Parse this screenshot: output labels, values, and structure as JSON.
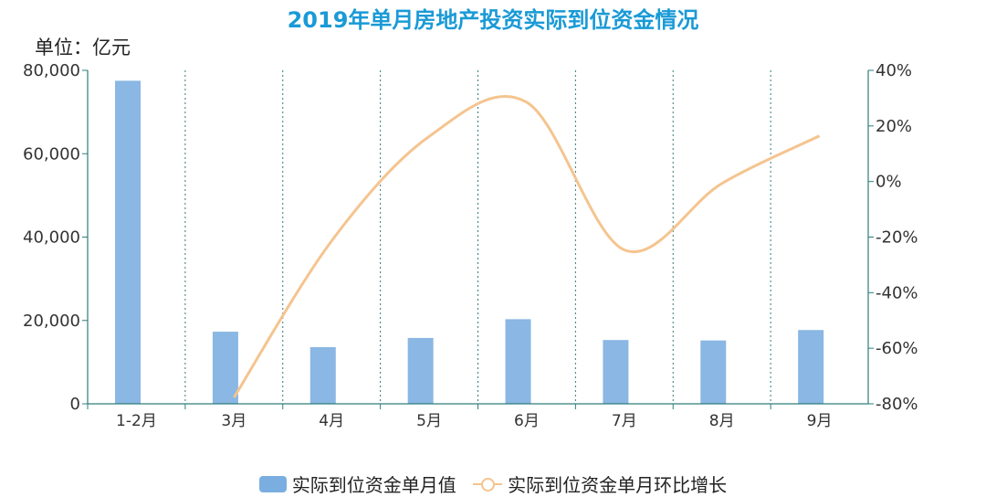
{
  "title": "2019年单月房地产投资实际到位资金情况",
  "unit_label": "单位：亿元",
  "legend": {
    "bar_label": "实际到位资金单月值",
    "line_label": "实际到位资金单月环比增长"
  },
  "chart_data": {
    "type": "bar",
    "categories": [
      "1-2月",
      "3月",
      "4月",
      "5月",
      "6月",
      "7月",
      "8月",
      "9月"
    ],
    "series": [
      {
        "name": "实际到位资金单月值",
        "type": "bar",
        "axis": "left",
        "values": [
          77500,
          17300,
          13600,
          15800,
          20300,
          15300,
          15200,
          17700
        ],
        "color": "#8ab7e3"
      },
      {
        "name": "实际到位资金单月环比增长",
        "type": "line",
        "axis": "right",
        "unit": "%",
        "values": [
          null,
          -77.7,
          -21.4,
          16.2,
          28.5,
          -24.6,
          -0.7,
          16.4
        ],
        "color": "#f5c48f"
      }
    ],
    "y_left": {
      "min": 0,
      "max": 80000,
      "ticks": [
        "0",
        "20,000",
        "40,000",
        "60,000",
        "80,000"
      ]
    },
    "y_right": {
      "min": -80,
      "max": 40,
      "ticks": [
        "-80%",
        "-60%",
        "-40%",
        "-20%",
        "0%",
        "20%",
        "40%"
      ]
    },
    "grid": "vertical dotted category separators",
    "legend_position": "bottom"
  }
}
